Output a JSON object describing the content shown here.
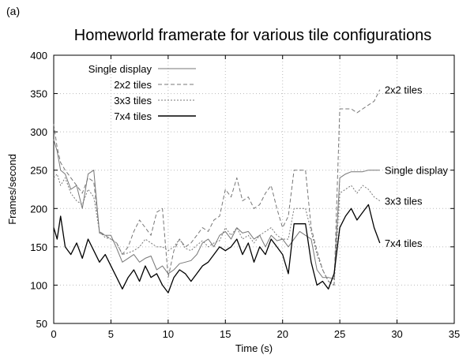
{
  "panel_label": "(a)",
  "chart_data": {
    "type": "line",
    "title": "Homeworld framerate for various tile configurations",
    "xlabel": "Time (s)",
    "ylabel": "Frames/second",
    "xlim": [
      0,
      35
    ],
    "ylim": [
      50,
      400
    ],
    "xticks": [
      0,
      5,
      10,
      15,
      20,
      25,
      30,
      35
    ],
    "yticks": [
      50,
      100,
      150,
      200,
      250,
      300,
      350,
      400
    ],
    "grid": true,
    "legend_position": "top-left",
    "series": [
      {
        "name": "Single display",
        "end_label": "Single display",
        "color": "#777777",
        "dash": "",
        "x": [
          0,
          0.3,
          0.6,
          1.0,
          1.5,
          2.0,
          2.5,
          3.0,
          3.5,
          4.0,
          4.5,
          5.0,
          5.5,
          6.0,
          6.5,
          7.0,
          7.5,
          8.0,
          8.5,
          9.0,
          9.5,
          10.0,
          10.5,
          11.0,
          11.5,
          12.0,
          12.5,
          13.0,
          13.5,
          14.0,
          14.5,
          15.0,
          15.5,
          16.0,
          16.5,
          17.0,
          17.5,
          18.0,
          18.5,
          19.0,
          19.5,
          20.0,
          20.5,
          21.0,
          21.5,
          22.0,
          22.5,
          23.0,
          23.5,
          24.0,
          24.5,
          25.0,
          25.5,
          26.0,
          26.5,
          27.0,
          27.5,
          28.0,
          28.5
        ],
        "y": [
          290,
          275,
          250,
          245,
          225,
          230,
          200,
          245,
          250,
          168,
          165,
          165,
          148,
          130,
          135,
          140,
          130,
          135,
          138,
          120,
          125,
          115,
          120,
          128,
          130,
          132,
          140,
          155,
          160,
          150,
          165,
          170,
          160,
          175,
          168,
          170,
          160,
          165,
          150,
          165,
          158,
          160,
          150,
          160,
          170,
          165,
          160,
          120,
          110,
          110,
          108,
          240,
          245,
          248,
          248,
          248,
          250,
          250,
          250
        ]
      },
      {
        "name": "2x2 tiles",
        "end_label": "2x2 tiles",
        "color": "#777777",
        "dash": "5,3",
        "x": [
          0,
          0.3,
          0.6,
          1.0,
          1.5,
          2.0,
          2.5,
          3.0,
          3.5,
          4.0,
          4.5,
          5.0,
          5.5,
          6.0,
          6.5,
          7.0,
          7.5,
          8.0,
          8.5,
          9.0,
          9.5,
          10.0,
          10.5,
          11.0,
          11.5,
          12.0,
          12.5,
          13.0,
          13.5,
          14.0,
          14.5,
          15.0,
          15.5,
          16.0,
          16.5,
          17.0,
          17.5,
          18.0,
          18.5,
          19.0,
          19.5,
          20.0,
          20.5,
          21.0,
          21.5,
          22.0,
          22.5,
          23.0,
          23.5,
          24.0,
          24.5,
          25.0,
          25.5,
          26.0,
          26.5,
          27.0,
          27.5,
          28.0,
          28.5
        ],
        "y": [
          310,
          280,
          260,
          250,
          240,
          230,
          220,
          240,
          235,
          170,
          165,
          160,
          155,
          140,
          150,
          170,
          185,
          175,
          165,
          195,
          200,
          110,
          145,
          160,
          150,
          155,
          165,
          175,
          170,
          185,
          190,
          225,
          215,
          240,
          210,
          215,
          200,
          205,
          220,
          230,
          200,
          175,
          190,
          250,
          250,
          250,
          175,
          145,
          120,
          105,
          100,
          330,
          330,
          330,
          325,
          330,
          335,
          340,
          355
        ]
      },
      {
        "name": "3x3 tiles",
        "end_label": "3x3 tiles",
        "color": "#777777",
        "dash": "2,2",
        "x": [
          0,
          0.3,
          0.6,
          1.0,
          1.5,
          2.0,
          2.5,
          3.0,
          3.5,
          4.0,
          4.5,
          5.0,
          5.5,
          6.0,
          6.5,
          7.0,
          7.5,
          8.0,
          8.5,
          9.0,
          9.5,
          10.0,
          10.5,
          11.0,
          11.5,
          12.0,
          12.5,
          13.0,
          13.5,
          14.0,
          14.5,
          15.0,
          15.5,
          16.0,
          16.5,
          17.0,
          17.5,
          18.0,
          18.5,
          19.0,
          19.5,
          20.0,
          20.5,
          21.0,
          21.5,
          22.0,
          22.5,
          23.0,
          23.5,
          24.0,
          24.5,
          25.0,
          25.5,
          26.0,
          26.5,
          27.0,
          27.5,
          28.0,
          28.5
        ],
        "y": [
          240,
          245,
          230,
          240,
          220,
          210,
          205,
          225,
          215,
          170,
          162,
          160,
          155,
          140,
          142,
          145,
          150,
          160,
          155,
          150,
          150,
          145,
          150,
          160,
          148,
          145,
          152,
          158,
          150,
          155,
          158,
          175,
          165,
          175,
          160,
          165,
          155,
          165,
          170,
          175,
          165,
          160,
          160,
          200,
          200,
          200,
          170,
          140,
          120,
          105,
          100,
          220,
          225,
          230,
          220,
          230,
          225,
          215,
          210
        ]
      },
      {
        "name": "7x4 tiles",
        "end_label": "7x4 tiles",
        "color": "#000000",
        "dash": "",
        "x": [
          0,
          0.3,
          0.6,
          1.0,
          1.5,
          2.0,
          2.5,
          3.0,
          3.5,
          4.0,
          4.5,
          5.0,
          5.5,
          6.0,
          6.5,
          7.0,
          7.5,
          8.0,
          8.5,
          9.0,
          9.5,
          10.0,
          10.5,
          11.0,
          11.5,
          12.0,
          12.5,
          13.0,
          13.5,
          14.0,
          14.5,
          15.0,
          15.5,
          16.0,
          16.5,
          17.0,
          17.5,
          18.0,
          18.5,
          19.0,
          19.5,
          20.0,
          20.5,
          21.0,
          21.5,
          22.0,
          22.5,
          23.0,
          23.5,
          24.0,
          24.5,
          25.0,
          25.5,
          26.0,
          26.5,
          27.0,
          27.5,
          28.0,
          28.5
        ],
        "y": [
          175,
          160,
          190,
          150,
          140,
          155,
          135,
          160,
          145,
          130,
          140,
          125,
          110,
          95,
          110,
          120,
          105,
          125,
          110,
          115,
          100,
          90,
          110,
          120,
          115,
          105,
          115,
          125,
          130,
          140,
          150,
          145,
          150,
          160,
          140,
          155,
          130,
          150,
          140,
          160,
          150,
          140,
          115,
          180,
          180,
          180,
          130,
          100,
          105,
          95,
          115,
          175,
          190,
          200,
          185,
          195,
          205,
          175,
          155
        ]
      }
    ]
  }
}
